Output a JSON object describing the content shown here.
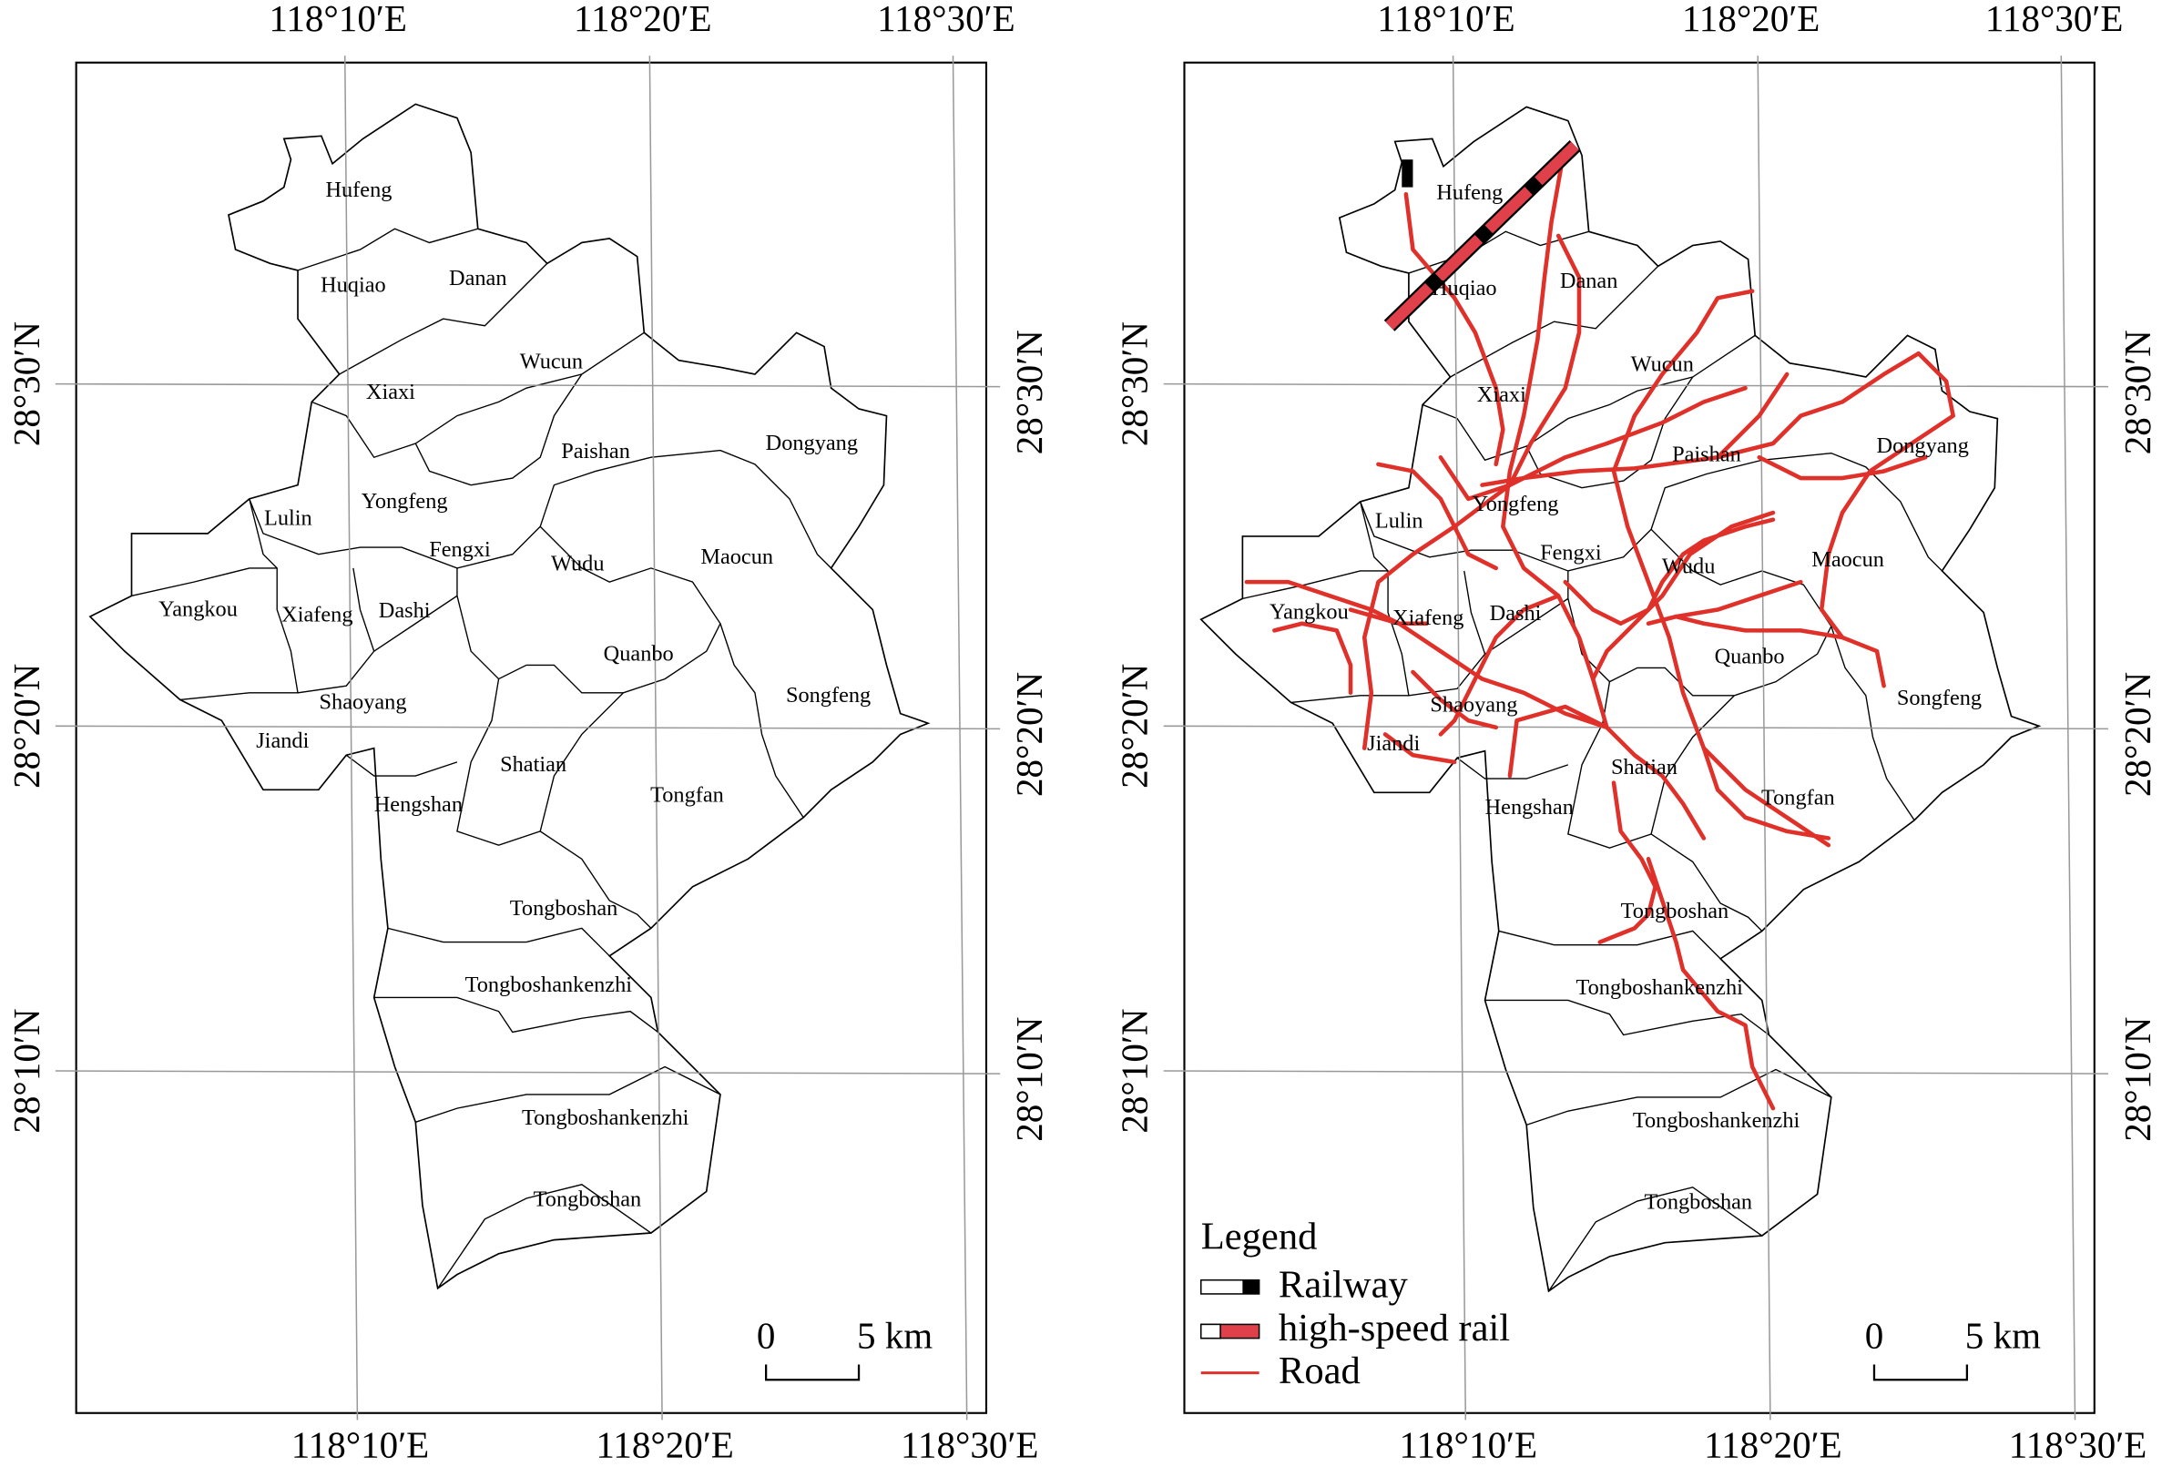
{
  "maps": [
    {
      "lon_labels_top": [
        "118°10′E",
        "118°20′E",
        "118°30′E"
      ],
      "lon_labels_bottom": [
        "118°10′E",
        "118°20′E",
        "118°30′E"
      ],
      "lat_labels_left": [
        "28°30′N",
        "28°20′N",
        "28°10′N"
      ],
      "lat_labels_right": [
        "28°30′N",
        "28°20′N",
        "28°10′N"
      ],
      "places": [
        "Hufeng",
        "Huqiao",
        "Danan",
        "Wucun",
        "Xiaxi",
        "Paishan",
        "Dongyang",
        "Yongfeng",
        "Lulin",
        "Fengxi",
        "Wudu",
        "Maocun",
        "Yangkou",
        "Xiafeng",
        "Dashi",
        "Quanbo",
        "Songfeng",
        "Shaoyang",
        "Jiandi",
        "Shatian",
        "Hengshan",
        "Tongfan",
        "Tongboshan",
        "Tongboshankenzhi",
        "Tongboshankenzhi",
        "Tongboshan"
      ],
      "scale_bar": [
        "0",
        "5 km"
      ]
    },
    {
      "lon_labels_top": [
        "118°10′E",
        "118°20′E",
        "118°30′E"
      ],
      "lon_labels_bottom": [
        "118°10′E",
        "118°20′E",
        "118°30′E"
      ],
      "lat_labels_left": [
        "28°30′N",
        "28°20′N",
        "28°10′N"
      ],
      "lat_labels_right": [
        "28°30′N",
        "28°20′N",
        "28°10′N"
      ],
      "places": [
        "Hufeng",
        "Huqiao",
        "Danan",
        "Wucun",
        "Xiaxi",
        "Paishan",
        "Dongyang",
        "Yongfeng",
        "Lulin",
        "Fengxi",
        "Wudu",
        "Maocun",
        "Yangkou",
        "Xiafeng",
        "Dashi",
        "Quanbo",
        "Songfeng",
        "Shaoyang",
        "Jiandi",
        "Shatian",
        "Hengshan",
        "Tongfan",
        "Tongboshan",
        "Tongboshankenzhi",
        "Tongboshankenzhi",
        "Tongboshan"
      ],
      "scale_bar": [
        "0",
        "5 km"
      ],
      "legend": {
        "title": "Legend",
        "items": [
          "Railway",
          "high-speed rail",
          "Road"
        ]
      }
    }
  ]
}
